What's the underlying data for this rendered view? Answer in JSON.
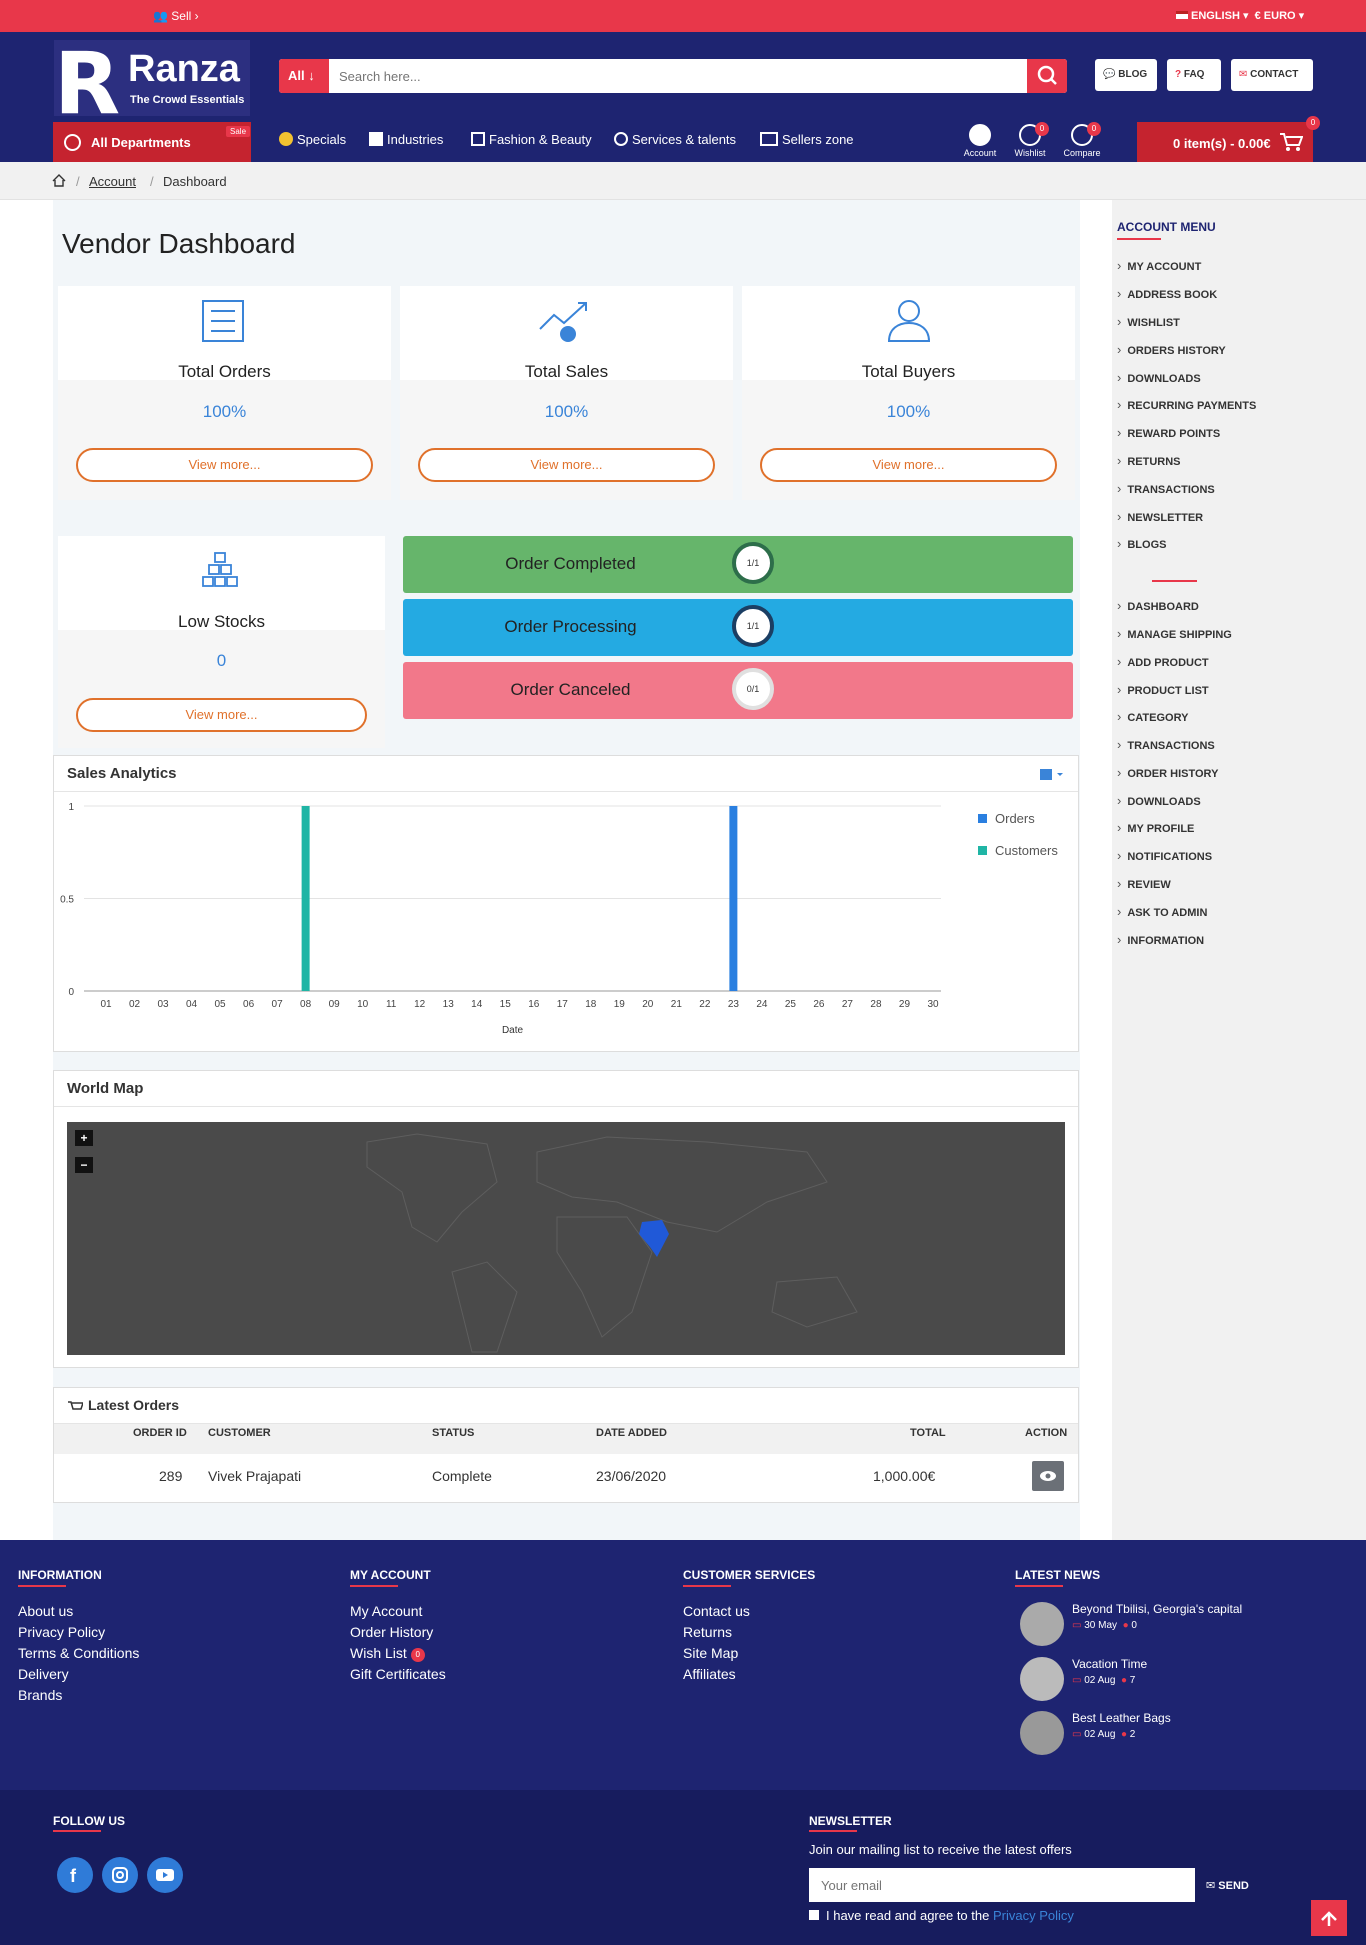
{
  "topbar": {
    "sell": "Sell ›",
    "language": "ENGLISH ▾",
    "currency": "€ EURO ▾"
  },
  "header": {
    "logo_name": "Ranza",
    "logo_letter": "R",
    "logo_tagline": "The Crowd Essentials",
    "search": {
      "category": "All ↓",
      "placeholder": "Search here..."
    },
    "links": [
      "BLOG",
      "FAQ",
      "CONTACT"
    ],
    "departments": "All Departments",
    "sale_badge": "Sale",
    "nav": [
      "Specials",
      "Industries",
      "Fashion & Beauty",
      "Services & talents",
      "Sellers zone"
    ],
    "icons": [
      {
        "label": "Account",
        "badge": ""
      },
      {
        "label": "Wishlist",
        "badge": "0"
      },
      {
        "label": "Compare",
        "badge": "0"
      }
    ],
    "cart": {
      "label": "0 item(s) - 0.00€",
      "badge": "0"
    }
  },
  "breadcrumb": {
    "items": [
      "Account",
      "Dashboard"
    ],
    "sep": "/"
  },
  "page_title": "Vendor Dashboard",
  "stats": [
    {
      "label": "Total Orders",
      "value": "100%",
      "link": "View more..."
    },
    {
      "label": "Total Sales",
      "value": "100%",
      "link": "View more..."
    },
    {
      "label": "Total Buyers",
      "value": "100%",
      "link": "View more..."
    },
    {
      "label": "Low Stocks",
      "value": "0",
      "link": "View more..."
    }
  ],
  "order_status": [
    {
      "label": "Order Completed",
      "ratio": "1/1",
      "color": "#66b56b"
    },
    {
      "label": "Order Processing",
      "ratio": "1/1",
      "color": "#24aae2"
    },
    {
      "label": "Order Canceled",
      "ratio": "0/1",
      "color": "#f2788a"
    }
  ],
  "analytics": {
    "title": "Sales Analytics"
  },
  "chart_data": {
    "type": "bar",
    "categories": [
      "01",
      "02",
      "03",
      "04",
      "05",
      "06",
      "07",
      "08",
      "09",
      "10",
      "11",
      "12",
      "13",
      "14",
      "15",
      "16",
      "17",
      "18",
      "19",
      "20",
      "21",
      "22",
      "23",
      "24",
      "25",
      "26",
      "27",
      "28",
      "29",
      "30"
    ],
    "series": [
      {
        "name": "Orders",
        "color": "#2a7fe0",
        "values": [
          0,
          0,
          0,
          0,
          0,
          0,
          0,
          0,
          0,
          0,
          0,
          0,
          0,
          0,
          0,
          0,
          0,
          0,
          0,
          0,
          0,
          0,
          1,
          0,
          0,
          0,
          0,
          0,
          0,
          0
        ]
      },
      {
        "name": "Customers",
        "color": "#1fb5a5",
        "values": [
          0,
          0,
          0,
          0,
          0,
          0,
          0,
          1,
          0,
          0,
          0,
          0,
          0,
          0,
          0,
          0,
          0,
          0,
          0,
          0,
          0,
          0,
          0,
          0,
          0,
          0,
          0,
          0,
          0,
          0
        ]
      }
    ],
    "yticks": [
      "1",
      "0.5",
      "0"
    ],
    "ylim": [
      0,
      1
    ],
    "xlabel": "Date",
    "legend": "top-right"
  },
  "worldmap": {
    "title": "World Map",
    "zoom_in": "+",
    "zoom_out": "−",
    "highlight": "India"
  },
  "orders": {
    "title": "Latest Orders",
    "columns": [
      "ORDER ID",
      "CUSTOMER",
      "STATUS",
      "DATE ADDED",
      "TOTAL",
      "ACTION"
    ],
    "rows": [
      {
        "id": "289",
        "customer": "Vivek Prajapati",
        "status": "Complete",
        "date": "23/06/2020",
        "total": "1,000.00€"
      }
    ]
  },
  "sidebar": {
    "title": "ACCOUNT MENU",
    "items": [
      "MY ACCOUNT",
      "ADDRESS BOOK",
      "WISHLIST",
      "ORDERS HISTORY",
      "DOWNLOADS",
      "RECURRING PAYMENTS",
      "REWARD POINTS",
      "RETURNS",
      "TRANSACTIONS",
      "NEWSLETTER",
      "BLOGS"
    ],
    "vendor_items": [
      "DASHBOARD",
      "MANAGE SHIPPING",
      "ADD PRODUCT",
      "PRODUCT LIST",
      "CATEGORY",
      "TRANSACTIONS",
      "ORDER HISTORY",
      "DOWNLOADS",
      "MY PROFILE",
      "NOTIFICATIONS",
      "REVIEW",
      "ASK TO ADMIN",
      "INFORMATION"
    ]
  },
  "footer": {
    "information": {
      "title": "INFORMATION",
      "links": [
        "About us",
        "Privacy Policy",
        "Terms & Conditions",
        "Delivery",
        "Brands"
      ]
    },
    "my_account": {
      "title": "MY ACCOUNT",
      "links": [
        "My Account",
        "Order History",
        "Wish List",
        "Gift Certificates"
      ],
      "wish_badge": "0"
    },
    "customer_services": {
      "title": "CUSTOMER SERVICES",
      "links": [
        "Contact us",
        "Returns",
        "Site Map",
        "Affiliates"
      ]
    },
    "latest_news": {
      "title": "LATEST NEWS",
      "items": [
        {
          "title": "Beyond Tbilisi, Georgia's capital",
          "date": "30 May",
          "comments": "0"
        },
        {
          "title": "Vacation Time",
          "date": "02 Aug",
          "comments": "7"
        },
        {
          "title": "Best Leather Bags",
          "date": "02 Aug",
          "comments": "2"
        }
      ]
    },
    "follow": {
      "title": "FOLLOW US"
    },
    "newsletter": {
      "title": "NEWSLETTER",
      "text": "Join our mailing list to receive the latest offers",
      "placeholder": "Your email",
      "send": "SEND",
      "agree": "I have read and agree to the",
      "policy": "Privacy Policy"
    }
  }
}
